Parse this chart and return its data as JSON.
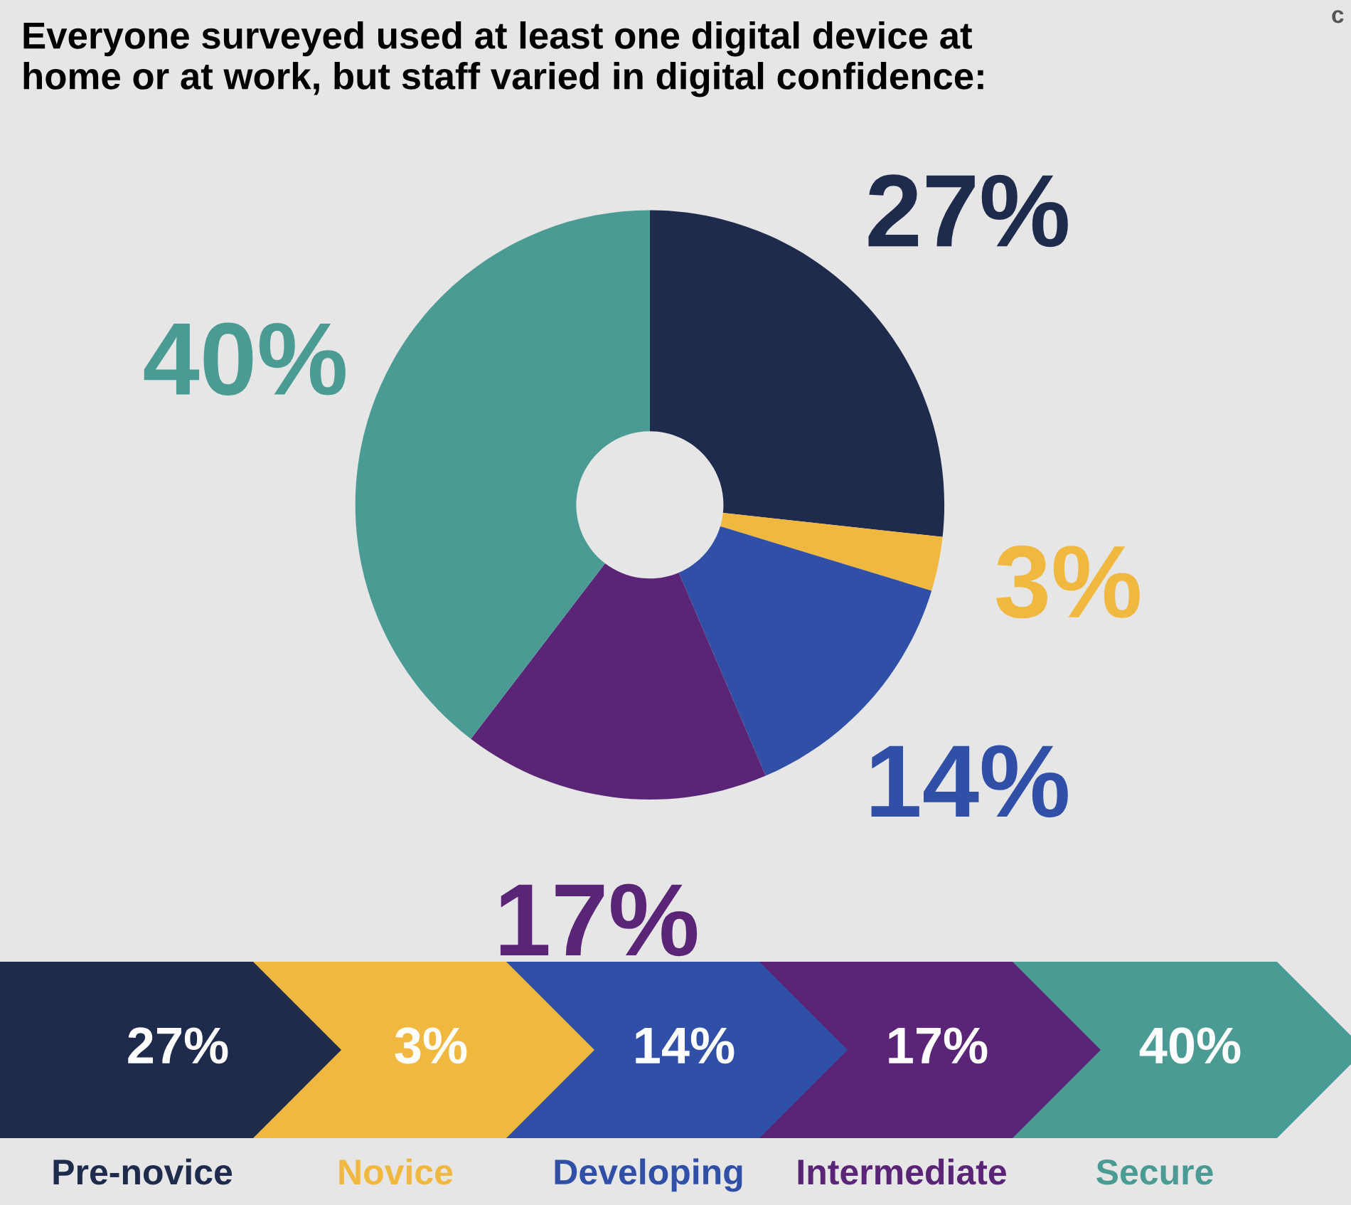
{
  "chart_data": [
    {
      "type": "donut",
      "title": "Everyone surveyed used at least one digital device at\nhome or at work, but staff varied in digital confidence:",
      "categories": [
        null,
        null,
        null,
        null,
        null
      ],
      "values": [
        27,
        3,
        14,
        17,
        40
      ],
      "colors": [
        "#1f2b4d",
        "#f0b83f",
        "#3050a8",
        "#5a2577",
        "#4a9b94"
      ],
      "value_labels": [
        "27%",
        "3%",
        "14%",
        "17%",
        "40%"
      ],
      "annotations": [
        "c"
      ]
    },
    {
      "type": "other",
      "categories": [
        "Pre-novice",
        "Novice",
        "Developing",
        "Intermediate",
        "Secure"
      ],
      "values": [
        27,
        3,
        14,
        17,
        40
      ],
      "colors": [
        "#1f2b4d",
        "#f0b83f",
        "#3050a8",
        "#5a2577",
        "#4a9b94"
      ],
      "value_labels": [
        "27%",
        "3%",
        "14%",
        "17%",
        "40%"
      ]
    }
  ]
}
